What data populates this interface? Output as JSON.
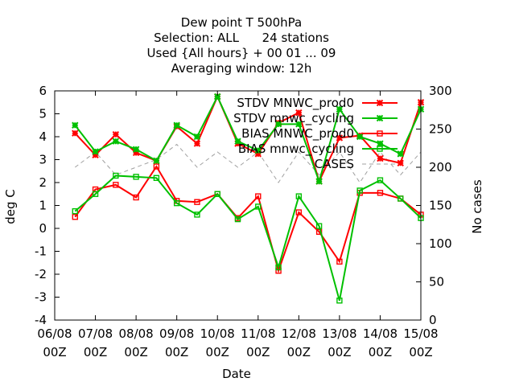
{
  "chart_data": {
    "type": "line",
    "title_lines": [
      "Dew point T 500hPa",
      "Selection: ALL      24 stations",
      "Used {All hours} + 00 01 ... 09",
      "Averaging window: 12h"
    ],
    "xlabel": "Date",
    "ylabel": "deg C",
    "y2label": "No cases",
    "xlim": [
      0,
      9
    ],
    "ylim": [
      -4,
      6
    ],
    "y2lim": [
      0,
      300
    ],
    "x_ticks": [
      {
        "x": 0,
        "l1": "06/08",
        "l2": "00Z"
      },
      {
        "x": 1,
        "l1": "07/08",
        "l2": "00Z"
      },
      {
        "x": 2,
        "l1": "08/08",
        "l2": "00Z"
      },
      {
        "x": 3,
        "l1": "09/08",
        "l2": "00Z"
      },
      {
        "x": 4,
        "l1": "10/08",
        "l2": "00Z"
      },
      {
        "x": 5,
        "l1": "11/08",
        "l2": "00Z"
      },
      {
        "x": 6,
        "l1": "12/08",
        "l2": "00Z"
      },
      {
        "x": 7,
        "l1": "13/08",
        "l2": "00Z"
      },
      {
        "x": 8,
        "l1": "14/08",
        "l2": "00Z"
      },
      {
        "x": 9,
        "l1": "15/08",
        "l2": "00Z"
      }
    ],
    "y_ticks": [
      -4,
      -3,
      -2,
      -1,
      0,
      1,
      2,
      3,
      4,
      5,
      6
    ],
    "y2_ticks": [
      0,
      50,
      100,
      150,
      200,
      250,
      300
    ],
    "x": [
      0.5,
      1.0,
      1.5,
      2.0,
      2.5,
      3.0,
      3.5,
      4.0,
      4.5,
      5.0,
      5.5,
      6.0,
      6.5,
      7.0,
      7.5,
      8.0,
      8.5,
      9.0
    ],
    "series": [
      {
        "name": "STDV MNWC_prod0",
        "axis": "y1",
        "color": "#ff0000",
        "marker": "star",
        "dashed": false,
        "values": [
          4.15,
          3.2,
          4.1,
          3.3,
          2.95,
          4.45,
          3.7,
          5.75,
          3.7,
          3.25,
          4.6,
          5.05,
          2.05,
          3.95,
          4.05,
          3.05,
          2.85,
          5.5
        ]
      },
      {
        "name": "STDV mnwc_cycling",
        "axis": "y1",
        "color": "#00c000",
        "marker": "star",
        "dashed": false,
        "values": [
          4.5,
          3.35,
          3.8,
          3.45,
          2.95,
          4.5,
          4.0,
          5.75,
          3.8,
          3.4,
          4.55,
          4.55,
          2.05,
          5.2,
          4.0,
          3.7,
          3.25,
          5.2
        ]
      },
      {
        "name": "BIAS MNWC_prod0",
        "axis": "y1",
        "color": "#ff0000",
        "marker": "square",
        "dashed": false,
        "values": [
          0.5,
          1.7,
          1.9,
          1.35,
          2.7,
          1.2,
          1.15,
          1.5,
          0.45,
          1.4,
          -1.85,
          0.7,
          -0.15,
          -1.45,
          1.55,
          1.55,
          1.3,
          0.6
        ]
      },
      {
        "name": "BIAS mnwc_cycling",
        "axis": "y1",
        "color": "#00c000",
        "marker": "square",
        "dashed": false,
        "values": [
          0.75,
          1.5,
          2.3,
          2.25,
          2.2,
          1.1,
          0.6,
          1.5,
          0.4,
          0.95,
          -1.7,
          1.4,
          0.1,
          -3.15,
          1.65,
          2.1,
          1.3,
          0.45
        ]
      },
      {
        "name": "CASES",
        "axis": "y2",
        "color": "#a0a0a0",
        "marker": "none",
        "dashed": true,
        "values": [
          200,
          220,
          190,
          200,
          210,
          230,
          200,
          220,
          200,
          220,
          180,
          220,
          190,
          220,
          180,
          220,
          190,
          220
        ]
      }
    ]
  }
}
